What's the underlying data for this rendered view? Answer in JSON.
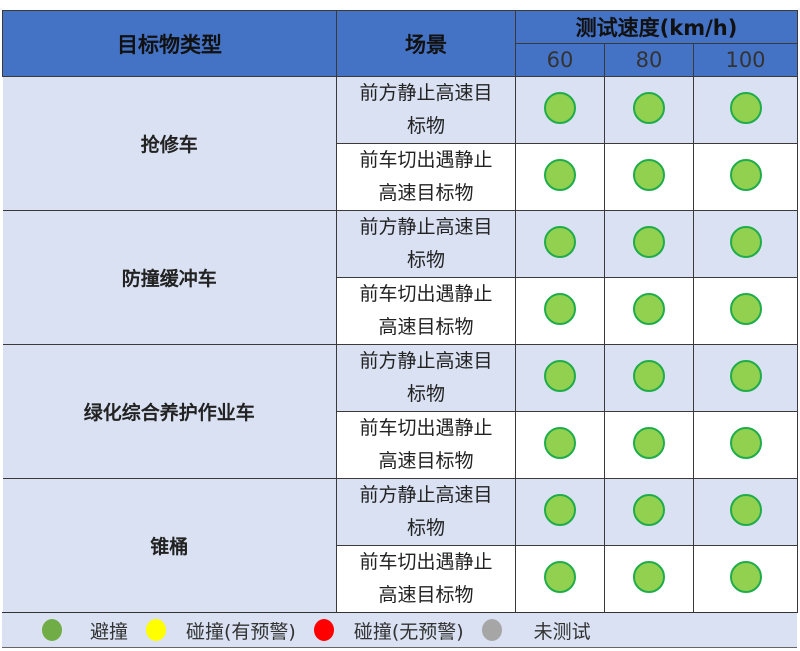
{
  "header": {
    "target_type": "目标物类型",
    "scenario": "场景",
    "speed": "测试速度(km/h)",
    "speeds": [
      "60",
      "80",
      "100"
    ]
  },
  "groups": [
    {
      "name": "抢修车",
      "rows": [
        {
          "scenario": "前方静止高速目标物",
          "results": [
            "避撞",
            "避撞",
            "避撞"
          ]
        },
        {
          "scenario": "前车切出遇静止高速目标物",
          "results": [
            "避撞",
            "避撞",
            "避撞"
          ]
        }
      ]
    },
    {
      "name": "防撞缓冲车",
      "rows": [
        {
          "scenario": "前方静止高速目标物",
          "results": [
            "避撞",
            "避撞",
            "避撞"
          ]
        },
        {
          "scenario": "前车切出遇静止高速目标物",
          "results": [
            "避撞",
            "避撞",
            "避撞"
          ]
        }
      ]
    },
    {
      "name": "绿化综合养护作业车",
      "rows": [
        {
          "scenario": "前方静止高速目标物",
          "results": [
            "避撞",
            "避撞",
            "避撞"
          ]
        },
        {
          "scenario": "前车切出遇静止高速目标物",
          "results": [
            "避撞",
            "避撞",
            "避撞"
          ]
        }
      ]
    },
    {
      "name": "锥桶",
      "rows": [
        {
          "scenario": "前方静止高速目标物",
          "results": [
            "避撞",
            "避撞",
            "避撞"
          ]
        },
        {
          "scenario": "前车切出遇静止高速目标物",
          "results": [
            "避撞",
            "避撞",
            "避撞"
          ]
        }
      ]
    }
  ],
  "legend": [
    {
      "label": "避撞",
      "color": "#70ad47"
    },
    {
      "label": "碰撞(有预警)",
      "color": "#ffff00"
    },
    {
      "label": "碰撞(无预警)",
      "color": "#ff0000"
    },
    {
      "label": "未测试",
      "color": "#a6a6a6"
    }
  ]
}
